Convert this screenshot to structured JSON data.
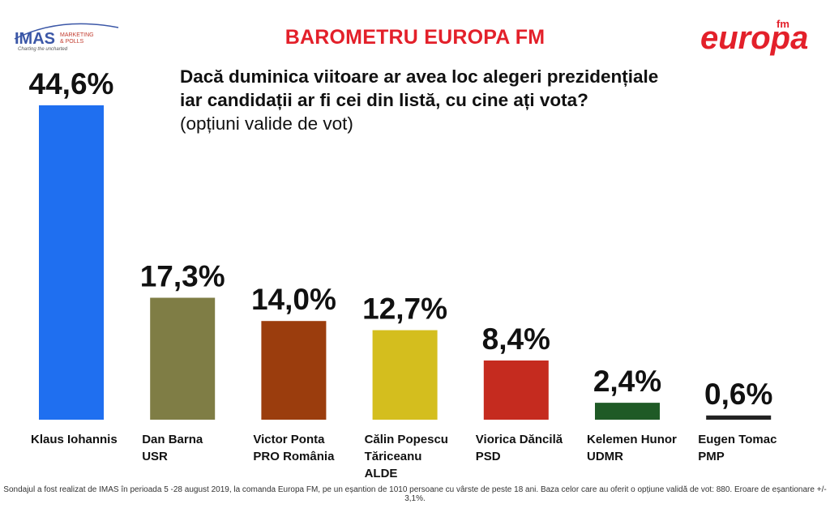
{
  "header": {
    "imas_logo": {
      "name": "IMAS",
      "line1": "MARKETING",
      "line2": "& POLLS",
      "tagline": "Charting the uncharted"
    },
    "title": "BAROMETRU EUROPA FM",
    "brand_logo": {
      "main": "europa",
      "sup": "fm",
      "color": "#e3202a"
    }
  },
  "question": {
    "line1": "Dacă duminica viitoare ar avea loc alegeri prezidențiale",
    "line2": "iar candidații ar fi cei din listă, cu cine ați vota?",
    "line3": "(opțiuni valide de vot)"
  },
  "chart_data": {
    "type": "bar",
    "title": "BAROMETRU EUROPA FM",
    "categories": [
      [
        "Klaus Iohannis"
      ],
      [
        "Dan Barna",
        "USR"
      ],
      [
        "Victor Ponta",
        "PRO România"
      ],
      [
        "Călin Popescu",
        "Tăriceanu",
        "ALDE"
      ],
      [
        "Viorica Dăncilă",
        "PSD"
      ],
      [
        "Kelemen Hunor",
        "UDMR"
      ],
      [
        "Eugen Tomac",
        "PMP"
      ]
    ],
    "values": [
      44.6,
      17.3,
      14.0,
      12.7,
      8.4,
      2.4,
      0.6
    ],
    "value_labels": [
      "44,6%",
      "17,3%",
      "14,0%",
      "12,7%",
      "8,4%",
      "2,4%",
      "0,6%"
    ],
    "colors": [
      "#1f6ff0",
      "#7f7d45",
      "#9b3d0d",
      "#d4be1e",
      "#c52b1f",
      "#1f5a26",
      "#222222"
    ],
    "ylim": [
      0,
      44.6
    ],
    "grid": false,
    "legend": "none"
  },
  "footnote": "Sondajul a fost realizat de IMAS în perioada 5 -28 august 2019, la comanda Europa FM, pe un eșantion de 1010 persoane cu vârste de peste 18 ani. Baza celor care au oferit o opțiune validă de vot: 880. Eroare de eșantionare +/- 3,1%."
}
